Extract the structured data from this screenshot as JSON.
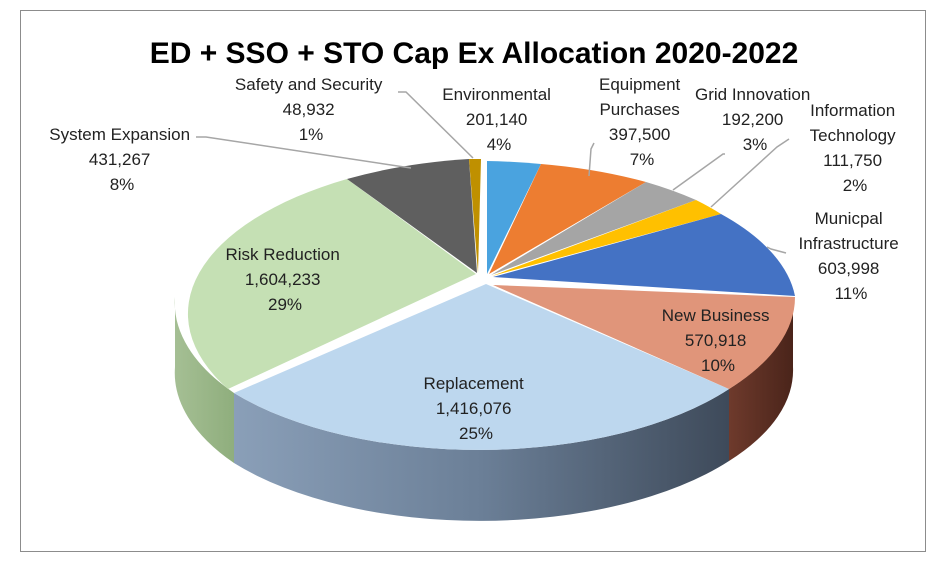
{
  "chart_data": {
    "type": "pie",
    "title": "ED + SSO + STO Cap Ex Allocation 2020-2022",
    "slices": [
      {
        "name": "Environmental",
        "value_text": "201,140",
        "value": 201140,
        "percent_text": "4%",
        "color": "#4aa3df"
      },
      {
        "name": "Equipment Purchases",
        "name_lines": [
          "Equipment",
          "Purchases"
        ],
        "value_text": "397,500",
        "value": 397500,
        "percent_text": "7%",
        "color": "#ed7d31"
      },
      {
        "name": "Grid Innovation",
        "value_text": "192,200",
        "value": 192200,
        "percent_text": "3%",
        "color": "#a5a5a5"
      },
      {
        "name": "Information Technology",
        "name_lines": [
          "Information",
          "Technology"
        ],
        "value_text": "111,750",
        "value": 111750,
        "percent_text": "2%",
        "color": "#ffc000"
      },
      {
        "name": "Municpal Infrastructure",
        "name_lines": [
          "Municpal",
          "Infrastructure"
        ],
        "value_text": "603,998",
        "value": 603998,
        "percent_text": "11%",
        "color": "#4472c4"
      },
      {
        "name": "New Business",
        "value_text": "570,918",
        "value": 570918,
        "percent_text": "10%",
        "color": "#e0957a"
      },
      {
        "name": "Replacement",
        "value_text": "1,416,076",
        "value": 1416076,
        "percent_text": "25%",
        "color": "#bdd7ee"
      },
      {
        "name": "Risk Reduction",
        "value_text": "1,604,233",
        "value": 1604233,
        "percent_text": "29%",
        "color": "#c5e0b4"
      },
      {
        "name": "System Expansion",
        "value_text": "431,267",
        "value": 431267,
        "percent_text": "8%",
        "color": "#5f5f5f"
      },
      {
        "name": "Safety and Security",
        "value_text": "48,932",
        "value": 48932,
        "percent_text": "1%",
        "color": "#bf9000"
      }
    ],
    "legend": "none",
    "style": "3d-exploded-pie"
  }
}
